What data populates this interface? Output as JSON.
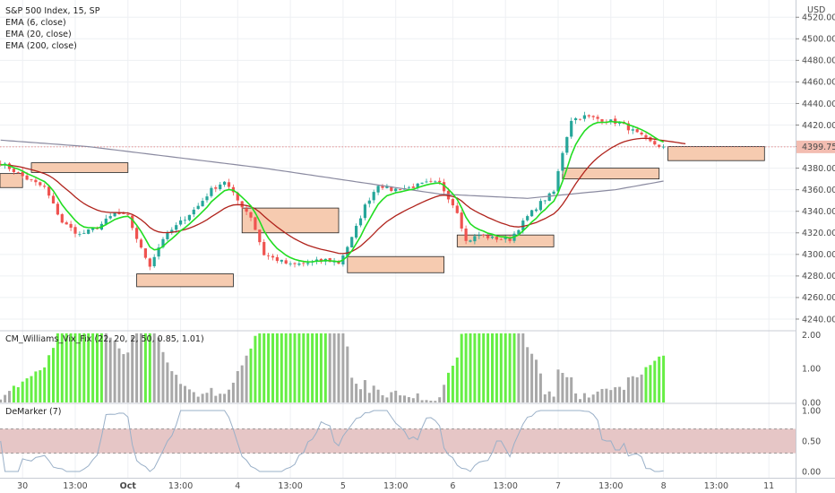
{
  "chart_data": {
    "type": "candlestick",
    "title": "S&P 500 Index, 15, SP",
    "indicators": [
      "EMA (6, close)",
      "EMA (20, close)",
      "EMA (200, close)"
    ],
    "currency": "USD",
    "last_price": "4399.75",
    "colors": {
      "up": "#26a69a",
      "down": "#ef5350",
      "ema6": "#22dd22",
      "ema20": "#b0231c",
      "ema200": "#8a8aa0",
      "zone_fill": "#f6cbb0",
      "vix_high": "#66ee44",
      "vix_normal": "#a8a8a8",
      "dem_line": "#9ab0c8",
      "dem_band": "#e6c6c6",
      "price_tag": "#f3bdb1"
    },
    "price_axis": {
      "min": 4230,
      "max": 4536,
      "ticks": [
        "4240.00",
        "4260.00",
        "4280.00",
        "4300.00",
        "4320.00",
        "4340.00",
        "4360.00",
        "4380.00",
        "4400.00",
        "4420.00",
        "4440.00",
        "4460.00",
        "4480.00",
        "4500.00",
        "4520.00"
      ]
    },
    "x_axis_ticks": [
      "30",
      "13:00",
      "Oct",
      "13:00",
      "4",
      "13:00",
      "5",
      "13:00",
      "6",
      "13:00",
      "7",
      "13:00",
      "8",
      "13:00",
      "11"
    ],
    "anchors": [
      {
        "i": 0,
        "p": 4385
      },
      {
        "i": 6,
        "p": 4370
      },
      {
        "i": 10,
        "p": 4362
      },
      {
        "i": 14,
        "p": 4330
      },
      {
        "i": 18,
        "p": 4318
      },
      {
        "i": 22,
        "p": 4325
      },
      {
        "i": 26,
        "p": 4338
      },
      {
        "i": 29,
        "p": 4335
      },
      {
        "i": 32,
        "p": 4305
      },
      {
        "i": 34,
        "p": 4290
      },
      {
        "i": 37,
        "p": 4315
      },
      {
        "i": 41,
        "p": 4330
      },
      {
        "i": 45,
        "p": 4345
      },
      {
        "i": 48,
        "p": 4360
      },
      {
        "i": 51,
        "p": 4368
      },
      {
        "i": 54,
        "p": 4350
      },
      {
        "i": 57,
        "p": 4335
      },
      {
        "i": 60,
        "p": 4300
      },
      {
        "i": 63,
        "p": 4295
      },
      {
        "i": 66,
        "p": 4290
      },
      {
        "i": 70,
        "p": 4292
      },
      {
        "i": 74,
        "p": 4295
      },
      {
        "i": 77,
        "p": 4292
      },
      {
        "i": 80,
        "p": 4315
      },
      {
        "i": 83,
        "p": 4345
      },
      {
        "i": 86,
        "p": 4365
      },
      {
        "i": 89,
        "p": 4360
      },
      {
        "i": 93,
        "p": 4362
      },
      {
        "i": 97,
        "p": 4366
      },
      {
        "i": 100,
        "p": 4366
      },
      {
        "i": 104,
        "p": 4340
      },
      {
        "i": 106,
        "p": 4312
      },
      {
        "i": 109,
        "p": 4318
      },
      {
        "i": 112,
        "p": 4315
      },
      {
        "i": 116,
        "p": 4314
      },
      {
        "i": 120,
        "p": 4335
      },
      {
        "i": 123,
        "p": 4348
      },
      {
        "i": 126,
        "p": 4358
      },
      {
        "i": 128,
        "p": 4395
      },
      {
        "i": 130,
        "p": 4425
      },
      {
        "i": 133,
        "p": 4428
      },
      {
        "i": 137,
        "p": 4425
      },
      {
        "i": 141,
        "p": 4422
      },
      {
        "i": 145,
        "p": 4412
      },
      {
        "i": 148,
        "p": 4404
      },
      {
        "i": 151,
        "p": 4399
      }
    ],
    "ema200": [
      {
        "i": 0,
        "p": 4406
      },
      {
        "i": 20,
        "p": 4400
      },
      {
        "i": 40,
        "p": 4390
      },
      {
        "i": 60,
        "p": 4380
      },
      {
        "i": 80,
        "p": 4368
      },
      {
        "i": 100,
        "p": 4356
      },
      {
        "i": 120,
        "p": 4352
      },
      {
        "i": 140,
        "p": 4360
      },
      {
        "i": 151,
        "p": 4368
      }
    ],
    "zones": [
      {
        "i1": -4,
        "i2": 5,
        "p1": 4375,
        "p2": 4362
      },
      {
        "i1": 7,
        "i2": 29,
        "p1": 4385,
        "p2": 4376
      },
      {
        "i1": 31,
        "i2": 53,
        "p1": 4282,
        "p2": 4270
      },
      {
        "i1": 55,
        "i2": 77,
        "p1": 4343,
        "p2": 4320
      },
      {
        "i1": 79,
        "i2": 101,
        "p1": 4298,
        "p2": 4283
      },
      {
        "i1": 104,
        "i2": 126,
        "p1": 4318,
        "p2": 4307
      },
      {
        "i1": 128,
        "i2": 150,
        "p1": 4380,
        "p2": 4370
      },
      {
        "i1": 152,
        "i2": 174,
        "p1": 4400,
        "p2": 4387
      }
    ],
    "vix_fix": {
      "name": "CM_Williams_Vix_Fix (22, 20, 2, 50, 0.85, 1.01)",
      "ticks": [
        "2.00",
        "1.00",
        "0.00"
      ],
      "max": 2.1
    },
    "demarker": {
      "name": "DeMarker (7)",
      "ticks": [
        "1.00",
        "0.50",
        "0.00"
      ],
      "band": [
        0.3,
        0.7
      ]
    }
  }
}
